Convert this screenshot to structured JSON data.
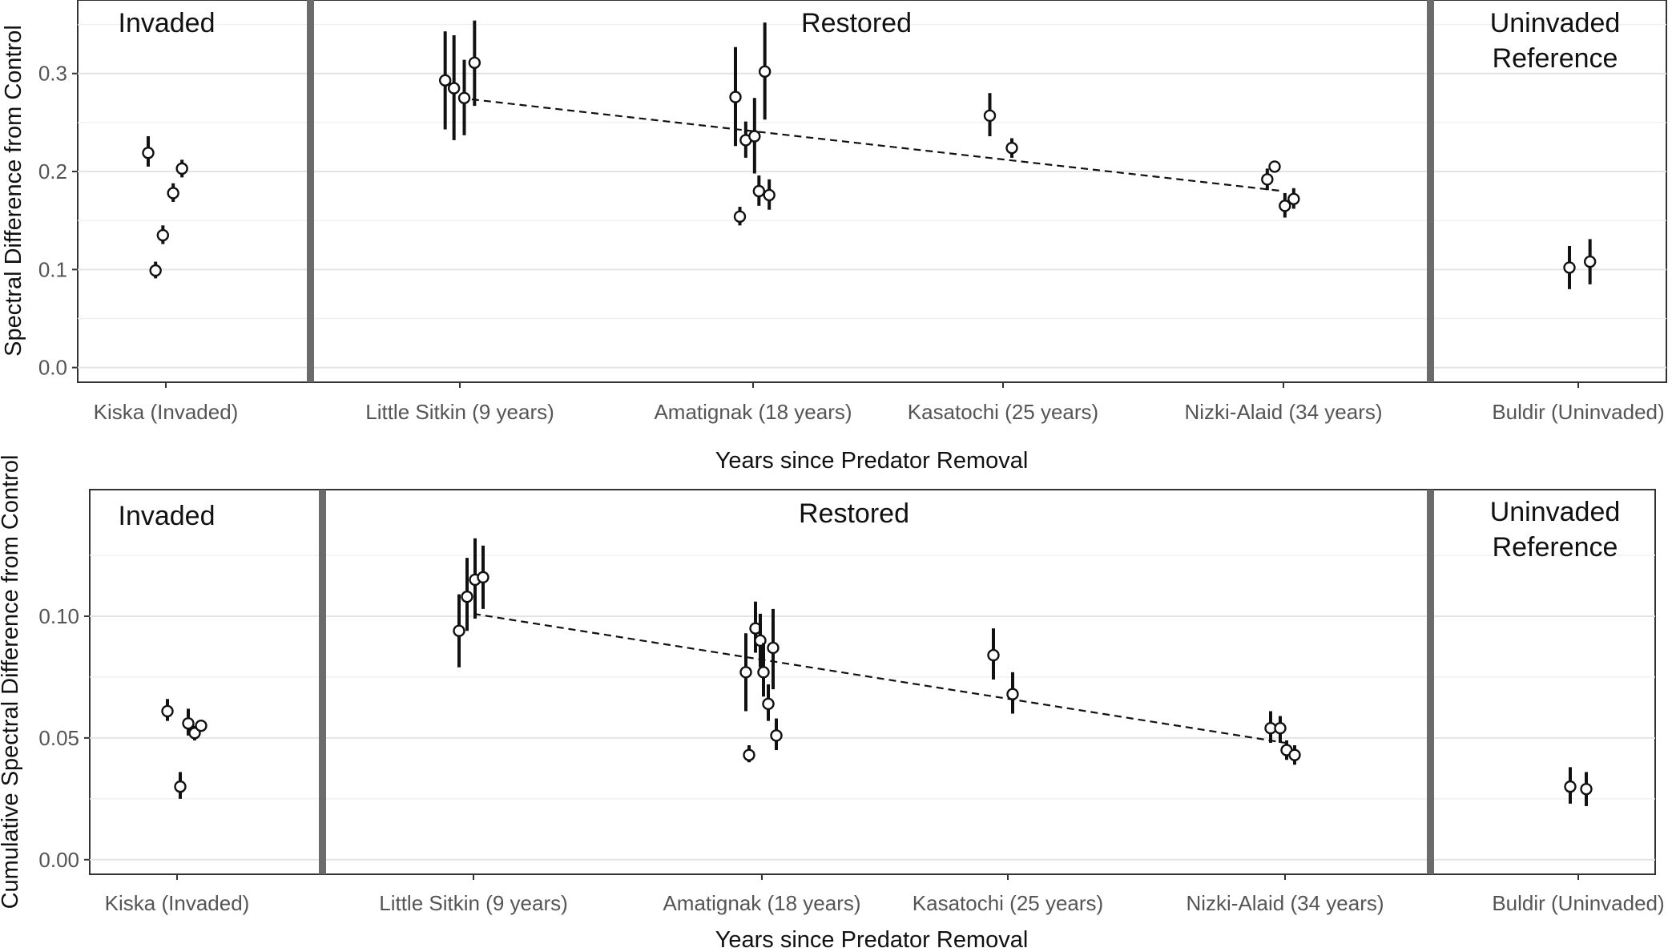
{
  "chart_data": [
    {
      "type": "scatter",
      "xlabel": "Years since Predator Removal",
      "ylabel": "Spectral Difference from Control",
      "ylim": [
        -0.015,
        0.375
      ],
      "yticks": [
        "0.0",
        "0.1",
        "0.2",
        "0.3"
      ],
      "ytick_values": [
        0.0,
        0.1,
        0.2,
        0.3
      ],
      "categories": [
        "Kiska (Invaded)",
        "Little Sitkin (9 years)",
        "Amatignak (18 years)",
        "Kasatochi (25 years)",
        "Nizki-Alaid (34 years)",
        "Buldir (Uninvaded)"
      ],
      "panels": [
        "Invaded",
        "Restored",
        "Uninvaded Reference"
      ],
      "grid": true,
      "points": [
        {
          "x": "Kiska (Invaded)",
          "offset": -0.12,
          "y": 0.219,
          "lo": 0.205,
          "hi": 0.236
        },
        {
          "x": "Kiska (Invaded)",
          "offset": -0.07,
          "y": 0.099,
          "lo": 0.091,
          "hi": 0.108
        },
        {
          "x": "Kiska (Invaded)",
          "offset": -0.02,
          "y": 0.135,
          "lo": 0.126,
          "hi": 0.145
        },
        {
          "x": "Kiska (Invaded)",
          "offset": 0.05,
          "y": 0.178,
          "lo": 0.169,
          "hi": 0.188
        },
        {
          "x": "Kiska (Invaded)",
          "offset": 0.11,
          "y": 0.203,
          "lo": 0.194,
          "hi": 0.212
        },
        {
          "x": "Little Sitkin (9 years)",
          "offset": -0.1,
          "y": 0.293,
          "lo": 0.243,
          "hi": 0.343
        },
        {
          "x": "Little Sitkin (9 years)",
          "offset": -0.04,
          "y": 0.285,
          "lo": 0.232,
          "hi": 0.339
        },
        {
          "x": "Little Sitkin (9 years)",
          "offset": 0.03,
          "y": 0.275,
          "lo": 0.237,
          "hi": 0.314
        },
        {
          "x": "Little Sitkin (9 years)",
          "offset": 0.1,
          "y": 0.311,
          "lo": 0.267,
          "hi": 0.354
        },
        {
          "x": "Amatignak (18 years)",
          "offset": -0.12,
          "y": 0.276,
          "lo": 0.226,
          "hi": 0.327
        },
        {
          "x": "Amatignak (18 years)",
          "offset": -0.09,
          "y": 0.154,
          "lo": 0.145,
          "hi": 0.164
        },
        {
          "x": "Amatignak (18 years)",
          "offset": -0.05,
          "y": 0.232,
          "lo": 0.214,
          "hi": 0.251
        },
        {
          "x": "Amatignak (18 years)",
          "offset": 0.01,
          "y": 0.236,
          "lo": 0.198,
          "hi": 0.275
        },
        {
          "x": "Amatignak (18 years)",
          "offset": 0.04,
          "y": 0.18,
          "lo": 0.165,
          "hi": 0.196
        },
        {
          "x": "Amatignak (18 years)",
          "offset": 0.08,
          "y": 0.302,
          "lo": 0.253,
          "hi": 0.352
        },
        {
          "x": "Amatignak (18 years)",
          "offset": 0.11,
          "y": 0.176,
          "lo": 0.161,
          "hi": 0.192
        },
        {
          "x": "Kasatochi (25 years)",
          "offset": -0.09,
          "y": 0.257,
          "lo": 0.236,
          "hi": 0.28
        },
        {
          "x": "Kasatochi (25 years)",
          "offset": 0.06,
          "y": 0.224,
          "lo": 0.214,
          "hi": 0.234
        },
        {
          "x": "Nizki-Alaid (34 years)",
          "offset": -0.11,
          "y": 0.192,
          "lo": 0.181,
          "hi": 0.203
        },
        {
          "x": "Nizki-Alaid (34 years)",
          "offset": -0.06,
          "y": 0.205,
          "lo": 0.2,
          "hi": 0.21
        },
        {
          "x": "Nizki-Alaid (34 years)",
          "offset": 0.01,
          "y": 0.165,
          "lo": 0.153,
          "hi": 0.178
        },
        {
          "x": "Nizki-Alaid (34 years)",
          "offset": 0.07,
          "y": 0.172,
          "lo": 0.162,
          "hi": 0.183
        },
        {
          "x": "Buldir (Uninvaded)",
          "offset": -0.06,
          "y": 0.102,
          "lo": 0.08,
          "hi": 0.124
        },
        {
          "x": "Buldir (Uninvaded)",
          "offset": 0.08,
          "y": 0.108,
          "lo": 0.085,
          "hi": 0.131
        }
      ],
      "trend": {
        "x_from": "Little Sitkin (9 years)",
        "y_from": 0.275,
        "x_to": "Nizki-Alaid (34 years)",
        "y_to": 0.18,
        "style": "dashed"
      }
    },
    {
      "type": "scatter",
      "xlabel": "Years since Predator Removal",
      "ylabel": "Cumulative Spectral Difference from Control",
      "ylim": [
        -0.006,
        0.152
      ],
      "yticks": [
        "0.00",
        "0.05",
        "0.10"
      ],
      "ytick_values": [
        0.0,
        0.05,
        0.1
      ],
      "categories": [
        "Kiska (Invaded)",
        "Little Sitkin (9 years)",
        "Amatignak (18 years)",
        "Kasatochi (25 years)",
        "Nizki-Alaid (34 years)",
        "Buldir (Uninvaded)"
      ],
      "panels": [
        "Invaded",
        "Restored",
        "Uninvaded Reference"
      ],
      "grid": true,
      "points": [
        {
          "x": "Kiska (Invaded)",
          "offset": -0.06,
          "y": 0.061,
          "lo": 0.057,
          "hi": 0.066
        },
        {
          "x": "Kiska (Invaded)",
          "offset": 0.02,
          "y": 0.03,
          "lo": 0.025,
          "hi": 0.036
        },
        {
          "x": "Kiska (Invaded)",
          "offset": 0.07,
          "y": 0.056,
          "lo": 0.051,
          "hi": 0.062
        },
        {
          "x": "Kiska (Invaded)",
          "offset": 0.11,
          "y": 0.052,
          "lo": 0.049,
          "hi": 0.055
        },
        {
          "x": "Kiska (Invaded)",
          "offset": 0.15,
          "y": 0.055,
          "lo": 0.053,
          "hi": 0.057
        },
        {
          "x": "Little Sitkin (9 years)",
          "offset": -0.09,
          "y": 0.094,
          "lo": 0.079,
          "hi": 0.109
        },
        {
          "x": "Little Sitkin (9 years)",
          "offset": -0.04,
          "y": 0.108,
          "lo": 0.094,
          "hi": 0.124
        },
        {
          "x": "Little Sitkin (9 years)",
          "offset": 0.01,
          "y": 0.115,
          "lo": 0.099,
          "hi": 0.132
        },
        {
          "x": "Little Sitkin (9 years)",
          "offset": 0.06,
          "y": 0.116,
          "lo": 0.103,
          "hi": 0.129
        },
        {
          "x": "Amatignak (18 years)",
          "offset": -0.1,
          "y": 0.077,
          "lo": 0.061,
          "hi": 0.093
        },
        {
          "x": "Amatignak (18 years)",
          "offset": -0.08,
          "y": 0.043,
          "lo": 0.04,
          "hi": 0.047
        },
        {
          "x": "Amatignak (18 years)",
          "offset": -0.04,
          "y": 0.095,
          "lo": 0.085,
          "hi": 0.106
        },
        {
          "x": "Amatignak (18 years)",
          "offset": -0.01,
          "y": 0.09,
          "lo": 0.079,
          "hi": 0.101
        },
        {
          "x": "Amatignak (18 years)",
          "offset": 0.01,
          "y": 0.077,
          "lo": 0.067,
          "hi": 0.089
        },
        {
          "x": "Amatignak (18 years)",
          "offset": 0.04,
          "y": 0.064,
          "lo": 0.057,
          "hi": 0.072
        },
        {
          "x": "Amatignak (18 years)",
          "offset": 0.07,
          "y": 0.087,
          "lo": 0.07,
          "hi": 0.103
        },
        {
          "x": "Amatignak (18 years)",
          "offset": 0.09,
          "y": 0.051,
          "lo": 0.045,
          "hi": 0.058
        },
        {
          "x": "Kasatochi (25 years)",
          "offset": -0.09,
          "y": 0.084,
          "lo": 0.074,
          "hi": 0.095
        },
        {
          "x": "Kasatochi (25 years)",
          "offset": 0.03,
          "y": 0.068,
          "lo": 0.06,
          "hi": 0.077
        },
        {
          "x": "Nizki-Alaid (34 years)",
          "offset": -0.09,
          "y": 0.054,
          "lo": 0.048,
          "hi": 0.061
        },
        {
          "x": "Nizki-Alaid (34 years)",
          "offset": -0.03,
          "y": 0.054,
          "lo": 0.048,
          "hi": 0.059
        },
        {
          "x": "Nizki-Alaid (34 years)",
          "offset": 0.01,
          "y": 0.045,
          "lo": 0.041,
          "hi": 0.049
        },
        {
          "x": "Nizki-Alaid (34 years)",
          "offset": 0.06,
          "y": 0.043,
          "lo": 0.039,
          "hi": 0.047
        },
        {
          "x": "Buldir (Uninvaded)",
          "offset": -0.05,
          "y": 0.03,
          "lo": 0.023,
          "hi": 0.038
        },
        {
          "x": "Buldir (Uninvaded)",
          "offset": 0.05,
          "y": 0.029,
          "lo": 0.022,
          "hi": 0.036
        }
      ],
      "trend": {
        "x_from": "Little Sitkin (9 years)",
        "y_from": 0.101,
        "x_to": "Nizki-Alaid (34 years)",
        "y_to": 0.048,
        "style": "dashed"
      }
    }
  ]
}
